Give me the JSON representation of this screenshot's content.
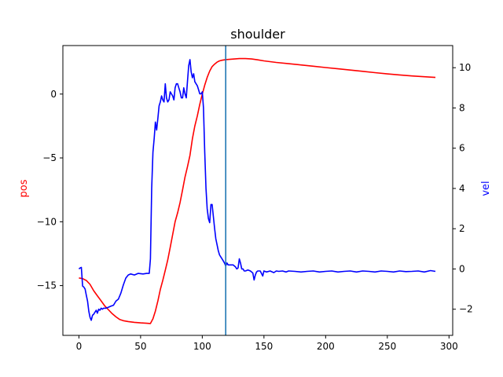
{
  "chart_data": {
    "type": "line",
    "title": "shoulder",
    "xlabel": "",
    "ylabel": "pos",
    "ylabel_right": "vel",
    "xlim": [
      -13,
      303
    ],
    "ylim": [
      -18.9,
      3.8
    ],
    "ylim_right": [
      -3.3,
      11.1
    ],
    "xticks": [
      0,
      50,
      100,
      150,
      200,
      250,
      300
    ],
    "yticks": [
      -15,
      -10,
      -5,
      0
    ],
    "yticks_right": [
      -2,
      0,
      2,
      4,
      6,
      8,
      10
    ],
    "grid": false,
    "vline_x": 119,
    "colors": {
      "pos": "#ff0000",
      "vel": "#0000ff",
      "vline": "#1f77b4"
    },
    "series": [
      {
        "name": "pos",
        "axis": "left",
        "points": [
          [
            0,
            -14.4
          ],
          [
            3,
            -14.45
          ],
          [
            6,
            -14.6
          ],
          [
            9,
            -14.9
          ],
          [
            12,
            -15.4
          ],
          [
            15,
            -15.8
          ],
          [
            18,
            -16.2
          ],
          [
            21,
            -16.6
          ],
          [
            24,
            -16.9
          ],
          [
            27,
            -17.2
          ],
          [
            30,
            -17.45
          ],
          [
            33,
            -17.65
          ],
          [
            36,
            -17.75
          ],
          [
            40,
            -17.82
          ],
          [
            45,
            -17.88
          ],
          [
            50,
            -17.92
          ],
          [
            55,
            -17.95
          ],
          [
            58,
            -17.97
          ],
          [
            60,
            -17.6
          ],
          [
            62,
            -17.0
          ],
          [
            64,
            -16.2
          ],
          [
            66,
            -15.3
          ],
          [
            68,
            -14.6
          ],
          [
            70,
            -13.8
          ],
          [
            72,
            -13.0
          ],
          [
            74,
            -12.0
          ],
          [
            76,
            -11.0
          ],
          [
            78,
            -10.0
          ],
          [
            80,
            -9.3
          ],
          [
            82,
            -8.5
          ],
          [
            84,
            -7.5
          ],
          [
            86,
            -6.5
          ],
          [
            88,
            -5.7
          ],
          [
            90,
            -4.8
          ],
          [
            92,
            -3.5
          ],
          [
            94,
            -2.5
          ],
          [
            96,
            -1.7
          ],
          [
            98,
            -0.8
          ],
          [
            100,
            0.0
          ],
          [
            102,
            0.7
          ],
          [
            104,
            1.3
          ],
          [
            106,
            1.8
          ],
          [
            108,
            2.15
          ],
          [
            110,
            2.35
          ],
          [
            112,
            2.5
          ],
          [
            114,
            2.6
          ],
          [
            116,
            2.65
          ],
          [
            119,
            2.7
          ],
          [
            122,
            2.72
          ],
          [
            126,
            2.75
          ],
          [
            130,
            2.78
          ],
          [
            135,
            2.78
          ],
          [
            140,
            2.75
          ],
          [
            145,
            2.68
          ],
          [
            150,
            2.6
          ],
          [
            160,
            2.48
          ],
          [
            170,
            2.38
          ],
          [
            180,
            2.28
          ],
          [
            190,
            2.18
          ],
          [
            200,
            2.08
          ],
          [
            210,
            1.98
          ],
          [
            220,
            1.88
          ],
          [
            230,
            1.78
          ],
          [
            240,
            1.68
          ],
          [
            250,
            1.58
          ],
          [
            260,
            1.5
          ],
          [
            270,
            1.42
          ],
          [
            280,
            1.36
          ],
          [
            289,
            1.3
          ]
        ]
      },
      {
        "name": "vel",
        "axis": "right",
        "points": [
          [
            0,
            0.0
          ],
          [
            1,
            0.05
          ],
          [
            2,
            0.08
          ],
          [
            3,
            -0.85
          ],
          [
            4,
            -0.9
          ],
          [
            5,
            -1.0
          ],
          [
            6,
            -1.3
          ],
          [
            7,
            -1.6
          ],
          [
            8,
            -2.1
          ],
          [
            9,
            -2.4
          ],
          [
            10,
            -2.55
          ],
          [
            11,
            -2.3
          ],
          [
            12,
            -2.25
          ],
          [
            13,
            -2.15
          ],
          [
            14,
            -2.05
          ],
          [
            15,
            -2.2
          ],
          [
            16,
            -2.0
          ],
          [
            17,
            -2.05
          ],
          [
            18,
            -1.95
          ],
          [
            19,
            -2.0
          ],
          [
            20,
            -1.95
          ],
          [
            22,
            -1.95
          ],
          [
            24,
            -1.9
          ],
          [
            26,
            -1.85
          ],
          [
            28,
            -1.8
          ],
          [
            30,
            -1.6
          ],
          [
            32,
            -1.5
          ],
          [
            34,
            -1.2
          ],
          [
            36,
            -0.8
          ],
          [
            38,
            -0.45
          ],
          [
            40,
            -0.3
          ],
          [
            42,
            -0.25
          ],
          [
            45,
            -0.3
          ],
          [
            48,
            -0.22
          ],
          [
            52,
            -0.25
          ],
          [
            55,
            -0.22
          ],
          [
            57,
            -0.22
          ],
          [
            58,
            0.5
          ],
          [
            59,
            4.0
          ],
          [
            60,
            5.8
          ],
          [
            61,
            6.5
          ],
          [
            62,
            7.3
          ],
          [
            63,
            6.9
          ],
          [
            64,
            7.5
          ],
          [
            65,
            8.1
          ],
          [
            66,
            8.3
          ],
          [
            67,
            8.6
          ],
          [
            68,
            8.4
          ],
          [
            69,
            8.3
          ],
          [
            70,
            9.2
          ],
          [
            71,
            8.5
          ],
          [
            72,
            8.3
          ],
          [
            73,
            8.4
          ],
          [
            74,
            8.8
          ],
          [
            75,
            8.7
          ],
          [
            76,
            8.6
          ],
          [
            77,
            8.4
          ],
          [
            78,
            9.0
          ],
          [
            79,
            9.2
          ],
          [
            80,
            9.2
          ],
          [
            81,
            9.0
          ],
          [
            82,
            8.8
          ],
          [
            83,
            8.5
          ],
          [
            84,
            8.5
          ],
          [
            85,
            9.0
          ],
          [
            86,
            8.7
          ],
          [
            87,
            8.5
          ],
          [
            88,
            9.3
          ],
          [
            89,
            10.1
          ],
          [
            90,
            10.4
          ],
          [
            91,
            9.8
          ],
          [
            92,
            9.5
          ],
          [
            93,
            9.7
          ],
          [
            94,
            9.3
          ],
          [
            95,
            9.2
          ],
          [
            96,
            9.1
          ],
          [
            97,
            8.9
          ],
          [
            98,
            8.7
          ],
          [
            99,
            8.7
          ],
          [
            100,
            8.8
          ],
          [
            101,
            8.0
          ],
          [
            102,
            5.8
          ],
          [
            103,
            4.0
          ],
          [
            104,
            3.0
          ],
          [
            105,
            2.5
          ],
          [
            106,
            2.3
          ],
          [
            107,
            3.2
          ],
          [
            108,
            3.2
          ],
          [
            109,
            2.6
          ],
          [
            110,
            2.0
          ],
          [
            111,
            1.5
          ],
          [
            112,
            1.2
          ],
          [
            113,
            0.9
          ],
          [
            114,
            0.7
          ],
          [
            115,
            0.6
          ],
          [
            116,
            0.5
          ],
          [
            117,
            0.4
          ],
          [
            118,
            0.3
          ],
          [
            119,
            0.15
          ],
          [
            120,
            0.3
          ],
          [
            121,
            0.2
          ],
          [
            123,
            0.2
          ],
          [
            125,
            0.2
          ],
          [
            127,
            0.1
          ],
          [
            128,
            0.0
          ],
          [
            129,
            0.05
          ],
          [
            130,
            0.5
          ],
          [
            131,
            0.3
          ],
          [
            132,
            0.0
          ],
          [
            133,
            0.0
          ],
          [
            134,
            -0.1
          ],
          [
            135,
            -0.1
          ],
          [
            137,
            -0.05
          ],
          [
            139,
            -0.1
          ],
          [
            141,
            -0.2
          ],
          [
            142,
            -0.55
          ],
          [
            143,
            -0.3
          ],
          [
            144,
            -0.15
          ],
          [
            145,
            -0.1
          ],
          [
            147,
            -0.1
          ],
          [
            149,
            -0.35
          ],
          [
            150,
            -0.1
          ],
          [
            152,
            -0.15
          ],
          [
            155,
            -0.1
          ],
          [
            158,
            -0.18
          ],
          [
            160,
            -0.1
          ],
          [
            162,
            -0.12
          ],
          [
            165,
            -0.1
          ],
          [
            168,
            -0.15
          ],
          [
            170,
            -0.1
          ],
          [
            175,
            -0.12
          ],
          [
            180,
            -0.15
          ],
          [
            185,
            -0.12
          ],
          [
            190,
            -0.1
          ],
          [
            195,
            -0.15
          ],
          [
            200,
            -0.12
          ],
          [
            205,
            -0.1
          ],
          [
            210,
            -0.15
          ],
          [
            215,
            -0.12
          ],
          [
            220,
            -0.1
          ],
          [
            225,
            -0.15
          ],
          [
            230,
            -0.1
          ],
          [
            235,
            -0.12
          ],
          [
            240,
            -0.15
          ],
          [
            245,
            -0.1
          ],
          [
            250,
            -0.12
          ],
          [
            255,
            -0.15
          ],
          [
            260,
            -0.1
          ],
          [
            265,
            -0.13
          ],
          [
            270,
            -0.12
          ],
          [
            275,
            -0.1
          ],
          [
            280,
            -0.15
          ],
          [
            285,
            -0.08
          ],
          [
            289,
            -0.12
          ]
        ]
      }
    ]
  }
}
